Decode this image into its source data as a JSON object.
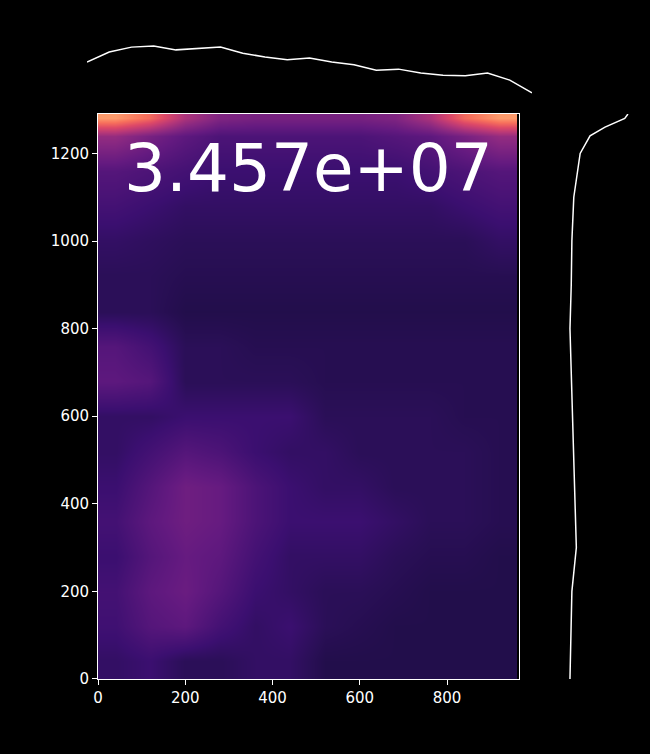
{
  "chart_data": [
    {
      "type": "heatmap",
      "color": "magma",
      "annotations": [
        "3.457e+07"
      ],
      "x": [
        40,
        120,
        200,
        280,
        360,
        440,
        520,
        600,
        680,
        760,
        840,
        920
      ],
      "y": [
        40,
        120,
        200,
        280,
        360,
        440,
        520,
        600,
        680,
        760,
        840,
        920,
        1000,
        1080,
        1160,
        1240,
        1280
      ],
      "values": [
        [
          22,
          24,
          20,
          20,
          22,
          22,
          18,
          18,
          18,
          18,
          18,
          18
        ],
        [
          25,
          30,
          32,
          26,
          22,
          24,
          20,
          19,
          18,
          18,
          18,
          18
        ],
        [
          26,
          32,
          35,
          30,
          24,
          22,
          20,
          20,
          19,
          18,
          18,
          18
        ],
        [
          24,
          30,
          34,
          32,
          26,
          22,
          22,
          22,
          20,
          19,
          19,
          18
        ],
        [
          26,
          32,
          36,
          34,
          28,
          24,
          24,
          24,
          22,
          20,
          20,
          19
        ],
        [
          24,
          30,
          36,
          34,
          28,
          24,
          22,
          22,
          20,
          20,
          20,
          19
        ],
        [
          22,
          26,
          30,
          28,
          24,
          22,
          22,
          20,
          20,
          20,
          20,
          19
        ],
        [
          22,
          22,
          24,
          24,
          24,
          24,
          20,
          20,
          20,
          20,
          19,
          19
        ],
        [
          32,
          30,
          20,
          20,
          20,
          20,
          19,
          19,
          19,
          19,
          19,
          19
        ],
        [
          30,
          26,
          20,
          20,
          19,
          19,
          19,
          19,
          19,
          19,
          19,
          19
        ],
        [
          20,
          20,
          18,
          18,
          18,
          18,
          18,
          18,
          18,
          18,
          18,
          18
        ],
        [
          20,
          20,
          19,
          19,
          19,
          19,
          19,
          19,
          19,
          19,
          19,
          19
        ],
        [
          22,
          21,
          20,
          20,
          20,
          20,
          20,
          20,
          20,
          20,
          20,
          22
        ],
        [
          26,
          24,
          22,
          22,
          22,
          22,
          22,
          22,
          22,
          22,
          24,
          26
        ],
        [
          30,
          28,
          26,
          24,
          24,
          24,
          24,
          24,
          24,
          26,
          28,
          30
        ],
        [
          45,
          38,
          32,
          28,
          28,
          28,
          28,
          28,
          30,
          32,
          38,
          45
        ],
        [
          80,
          70,
          50,
          40,
          38,
          38,
          38,
          38,
          40,
          50,
          70,
          80
        ]
      ],
      "zlim": [
        5,
        100
      ],
      "xlim": [
        0,
        965
      ],
      "ylim": [
        0,
        1290
      ],
      "xticks": [
        0,
        200,
        400,
        600,
        800
      ],
      "yticks": [
        0,
        200,
        400,
        600,
        800,
        1000,
        1200
      ]
    },
    {
      "type": "line",
      "color": "#ffffff",
      "tick_labels": false,
      "x": [
        0,
        50,
        100,
        150,
        200,
        250,
        300,
        350,
        400,
        450,
        500,
        550,
        600,
        650,
        700,
        750,
        800,
        850,
        900,
        950,
        1000
      ],
      "values": [
        0.6,
        0.78,
        0.87,
        0.89,
        0.82,
        0.85,
        0.87,
        0.76,
        0.69,
        0.64,
        0.67,
        0.6,
        0.55,
        0.45,
        0.47,
        0.4,
        0.36,
        0.35,
        0.4,
        0.27,
        0.04
      ],
      "xlim": [
        0,
        1000
      ],
      "ylim": [
        0,
        1
      ]
    },
    {
      "type": "line",
      "color": "#ffffff",
      "tick_labels": false,
      "orientation": "horizontal",
      "y": [
        0,
        100,
        200,
        300,
        400,
        500,
        600,
        700,
        800,
        900,
        1000,
        1100,
        1200,
        1240,
        1260,
        1280,
        1290
      ],
      "values": [
        0.06,
        0.08,
        0.09,
        0.16,
        0.14,
        0.12,
        0.11,
        0.09,
        0.06,
        0.08,
        0.09,
        0.12,
        0.22,
        0.375,
        0.61,
        0.92,
        0.97
      ],
      "xlim": [
        0,
        1
      ],
      "ylim": [
        0,
        1290
      ]
    }
  ]
}
